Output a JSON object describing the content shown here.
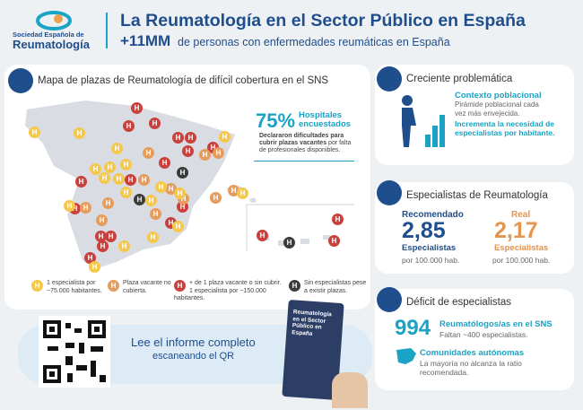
{
  "header": {
    "logo_line1": "Sociedad Española de",
    "logo_line2": "Reumatología",
    "title": "La Reumatología en el Sector Público en España",
    "highlight": "+11MM",
    "subtitle": "de personas con enfermedades reumáticas en España"
  },
  "map": {
    "title": "Mapa de plazas de Reumatología de difícil cobertura en el SNS",
    "marker_label": "H",
    "stat_value": "75%",
    "stat_label": "Hospitales encuestados",
    "stat_text_bold": "Declararon dificultades para cubrir plazas vacantes",
    "stat_text": "por falta de profesionales disponibles.",
    "legend": [
      "1 especialista por ~75.000 habitantes.",
      "Plaza vacante no cubierta.",
      "+ de 1 plaza vacante o sin cubrir. 1 especialista por ~150.000 habitantes.",
      "Sin especialistas pese a existir plazas."
    ]
  },
  "qr": {
    "text1": "Lee el informe completo",
    "text2": "escaneando el QR",
    "booklet_title": "Reumatología en el Sector Público en España"
  },
  "problem": {
    "title": "Creciente problemática",
    "heading": "Contexto poblacional",
    "text": "Pirámide poblacional cada vez más envejecida.",
    "emphasis": "Incrementa la necesidad de especialistas por habitante."
  },
  "specialists": {
    "title": "Especialistas de Reumatología",
    "recommended": {
      "label": "Recomendado",
      "value": "2,85",
      "unit": "Especialistas",
      "per": "por 100.000 hab."
    },
    "real": {
      "label": "Real",
      "value": "2,17",
      "unit": "Especialistas",
      "per": "por 100.000 hab."
    }
  },
  "deficit": {
    "title": "Déficit de especialistas",
    "value": "994",
    "value_label": "Reumatólogos/as en el SNS",
    "missing": "Faltan ~400 especialistas.",
    "regions_title": "Comunidades autónomas",
    "regions_text": "La mayoría no alcanza la ratio recomendada."
  }
}
